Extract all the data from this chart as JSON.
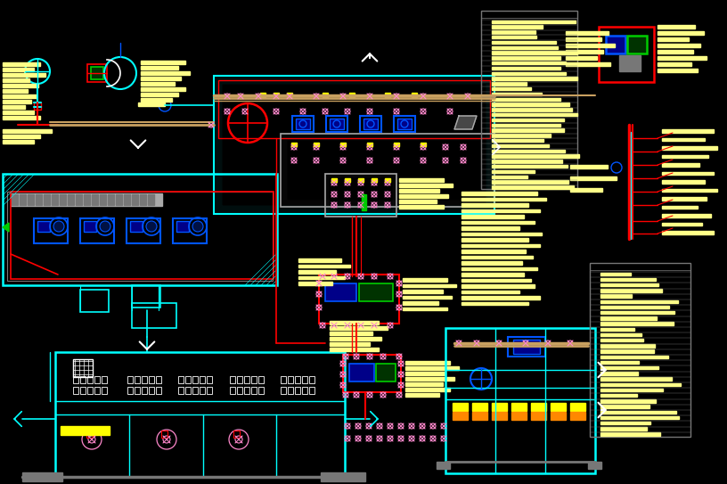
{
  "bg": "#000000",
  "fw": 8.16,
  "fh": 5.43,
  "dpi": 100,
  "cyan": "#00FFFF",
  "yellow": "#FFFF00",
  "red": "#FF0000",
  "blue": "#0055FF",
  "green": "#00CC00",
  "magenta": "#FF44AA",
  "white": "#FFFFFF",
  "gray": "#777777",
  "lgray": "#AAAAAA",
  "orange": "#FF8800",
  "lyellow": "#FFFF88",
  "tan": "#C8A060",
  "dkblue": "#000088",
  "dkgreen": "#003300",
  "pink": "#FF88CC"
}
